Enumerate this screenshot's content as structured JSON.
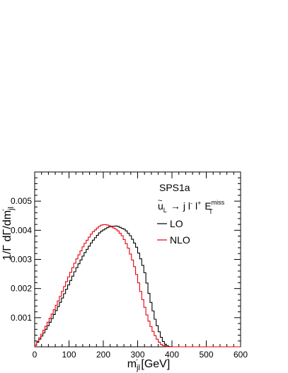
{
  "chart_data": {
    "type": "line",
    "render_style": "step-histogram",
    "xlim": [
      0,
      600
    ],
    "ylim": [
      0,
      0.006
    ],
    "x_ticks": [
      0,
      100,
      200,
      300,
      400,
      500,
      600
    ],
    "y_ticks": [
      0.001,
      0.002,
      0.003,
      0.004,
      0.005
    ],
    "x_tick_labels": [
      "0",
      "100",
      "200",
      "300",
      "400",
      "500",
      "600"
    ],
    "y_tick_labels": [
      "0.001",
      "0.002",
      "0.003",
      "0.004",
      "0.005"
    ],
    "bin_width": 6,
    "grid": false,
    "legend_placement": "top-right",
    "xlabel": {
      "main": "m",
      "sub": "jl",
      "sup": "-",
      "unit": " [GeV]"
    },
    "ylabel": {
      "main": "1/Γ dΓ/dm",
      "sub": "jl",
      "sup": "-"
    },
    "annotation": {
      "benchmark": "SPS1a",
      "process": {
        "squark": "u",
        "tilde": "~",
        "squark_sub": "L",
        "arrow": "→",
        "products": "j l",
        "lminus": "-",
        "lplus": "l",
        "plus": "+",
        "met": "E",
        "met_sup": "miss",
        "met_sub": "T"
      }
    },
    "series": [
      {
        "name": "LO",
        "color": "#000000",
        "points": [
          [
            0,
            0
          ],
          [
            24,
            0.00042
          ],
          [
            48,
            0.0009
          ],
          [
            72,
            0.00145
          ],
          [
            96,
            0.00205
          ],
          [
            120,
            0.00265
          ],
          [
            144,
            0.00318
          ],
          [
            168,
            0.00362
          ],
          [
            192,
            0.00395
          ],
          [
            216,
            0.00412
          ],
          [
            240,
            0.00415
          ],
          [
            264,
            0.00402
          ],
          [
            280,
            0.0038
          ],
          [
            296,
            0.00345
          ],
          [
            312,
            0.00292
          ],
          [
            322,
            0.0025
          ],
          [
            330,
            0.002
          ],
          [
            336,
            0.00167
          ],
          [
            344,
            0.00128
          ],
          [
            352,
            0.0009
          ],
          [
            360,
            0.00062
          ],
          [
            368,
            0.00035
          ],
          [
            376,
            0.00016
          ],
          [
            384,
            5e-05
          ],
          [
            392,
            1e-05
          ],
          [
            400,
            0
          ],
          [
            600,
            0
          ]
        ]
      },
      {
        "name": "NLO",
        "color": "#e8000b",
        "points": [
          [
            0,
            0
          ],
          [
            24,
            0.0005
          ],
          [
            48,
            0.00105
          ],
          [
            72,
            0.00165
          ],
          [
            96,
            0.00232
          ],
          [
            120,
            0.00295
          ],
          [
            144,
            0.0035
          ],
          [
            168,
            0.00392
          ],
          [
            192,
            0.00417
          ],
          [
            204,
            0.0042
          ],
          [
            216,
            0.00417
          ],
          [
            240,
            0.00402
          ],
          [
            256,
            0.0038
          ],
          [
            272,
            0.00342
          ],
          [
            288,
            0.00288
          ],
          [
            296,
            0.00253
          ],
          [
            304,
            0.00215
          ],
          [
            312,
            0.00175
          ],
          [
            320,
            0.0014
          ],
          [
            328,
            0.00105
          ],
          [
            336,
            0.00078
          ],
          [
            344,
            0.00055
          ],
          [
            352,
            0.00036
          ],
          [
            360,
            0.0002
          ],
          [
            368,
            9e-05
          ],
          [
            376,
            3e-05
          ],
          [
            384,
            0
          ],
          [
            600,
            0
          ]
        ]
      }
    ]
  }
}
